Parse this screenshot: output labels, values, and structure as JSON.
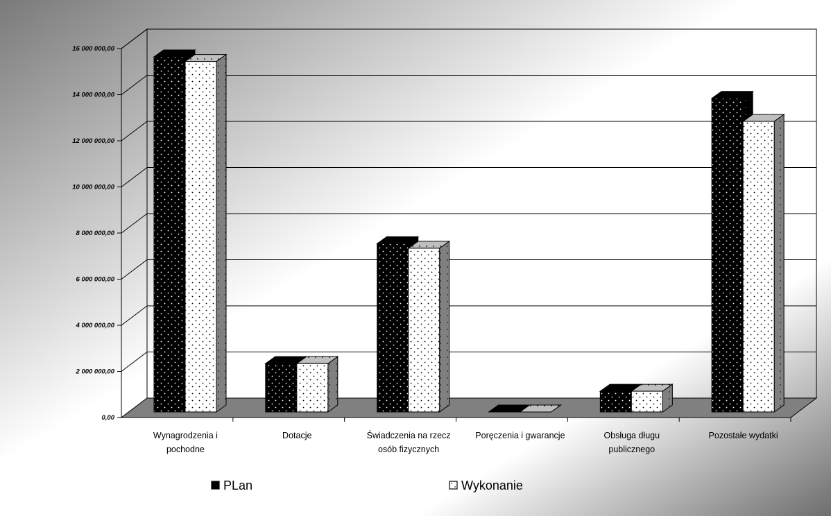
{
  "chart_data": {
    "type": "bar",
    "categories": [
      [
        "Wynagrodzenia i",
        "pochodne"
      ],
      [
        "Dotacje"
      ],
      [
        "Świadczenia na rzecz",
        "osób fizycznych"
      ],
      [
        "Poręczenia i gwarancje"
      ],
      [
        "Obsługa długu",
        "publicznego"
      ],
      [
        "Pozostałe wydatki"
      ]
    ],
    "series": [
      {
        "name": "PLan",
        "values": [
          15400000,
          2100000,
          7300000,
          0,
          900000,
          13600000
        ]
      },
      {
        "name": "Wykonanie",
        "values": [
          15200000,
          2100000,
          7100000,
          0,
          900000,
          12600000
        ]
      }
    ],
    "yticks": [
      "0,00",
      "2 000 000,00",
      "4 000 000,00",
      "6 000 000,00",
      "8 000 000,00",
      "10 000 000,00",
      "12 000 000,00",
      "14 000 000,00",
      "16 000 000,00"
    ],
    "ylim": [
      0,
      16000000
    ],
    "grid": true,
    "legend_position": "bottom",
    "colors": {
      "plan": "#000000",
      "wykonanie": "#ffffff",
      "floor": "#808080"
    }
  }
}
